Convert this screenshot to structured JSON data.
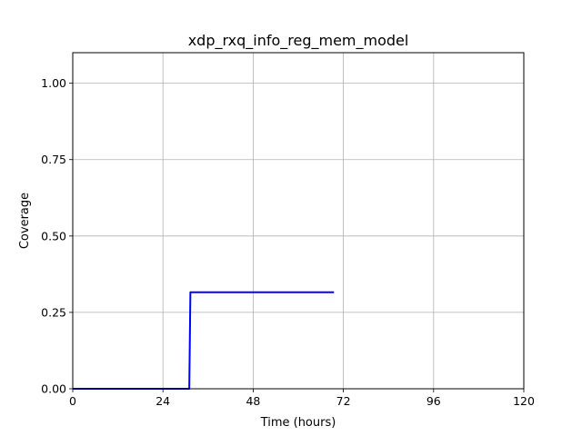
{
  "chart_data": {
    "type": "line",
    "title": "xdp_rxq_info_reg_mem_model",
    "xlabel": "Time (hours)",
    "ylabel": "Coverage",
    "xlim": [
      0,
      120
    ],
    "ylim": [
      0,
      1.1
    ],
    "xticks": [
      0,
      24,
      48,
      72,
      96,
      120
    ],
    "xtick_labels": [
      "0",
      "24",
      "48",
      "72",
      "96",
      "120"
    ],
    "yticks": [
      0,
      0.25,
      0.5,
      0.75,
      1.0
    ],
    "ytick_labels": [
      "0.00",
      "0.25",
      "0.50",
      "0.75",
      "1.00"
    ],
    "grid": true,
    "series": [
      {
        "color": "#0000ff",
        "x": [
          0,
          31,
          31.3,
          69.5
        ],
        "y": [
          0,
          0,
          0.316,
          0.316
        ]
      }
    ]
  }
}
